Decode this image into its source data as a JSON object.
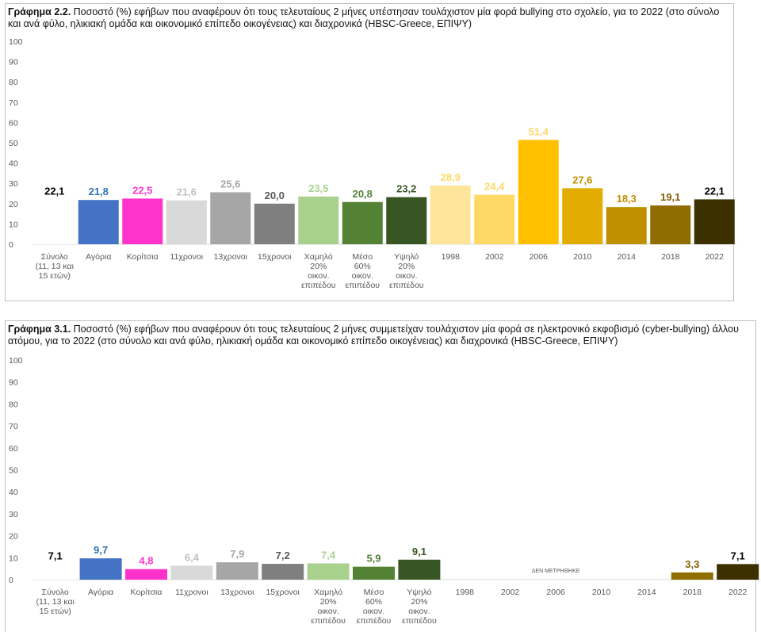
{
  "palette": [
    "#ffffff",
    "#4472c4",
    "#ff33cc",
    "#d9d9d9",
    "#a6a6a6",
    "#7f7f7f",
    "#a9d18e",
    "#548235",
    "#375623",
    "#fee599",
    "#ffd966",
    "#ffc000",
    "#e2ac00",
    "#bf9000",
    "#8f6d00",
    "#3c3000"
  ],
  "label_colors": [
    "#000000",
    "#2e75b6",
    "#ff33cc",
    "#bfbfbf",
    "#a6a6a6",
    "#595959",
    "#a9d18e",
    "#548235",
    "#375623",
    "#ffd966",
    "#ffd966",
    "#ffd966",
    "#bf9000",
    "#bf9000",
    "#7f6000",
    "#000000"
  ],
  "chart_data": [
    {
      "type": "bar",
      "title_bold": "Γράφημα 2.2.",
      "title": "Ποσοστό (%) εφήβων που αναφέρουν ότι τους τελευταίους 2 μήνες υπέστησαν τουλάχιστον μία φορά bullying στο σχολείο, για το 2022 (στο σύνολο και ανά φύλο, ηλικιακή ομάδα και οικονομικό επίπεδο οικογένειας) και διαχρονικά (HBSC-Greece, ΕΠΙΨΥ)",
      "categories": [
        "Σύνολο (11, 13 και 15 ετών)",
        "Αγόρια",
        "Κορίτσια",
        "11χρονοι",
        "13χρονοι",
        "15χρονοι",
        "Χαμηλό 20% οικον. επιπέδου",
        "Μέσο 60% οικον. επιπέδου",
        "Υψηλό 20% οικον. επιπέδου",
        "1998",
        "2002",
        "2006",
        "2010",
        "2014",
        "2018",
        "2022"
      ],
      "values": [
        22.1,
        21.8,
        22.5,
        21.6,
        25.6,
        20.0,
        23.5,
        20.8,
        23.2,
        28.9,
        24.4,
        51.4,
        27.6,
        18.3,
        19.1,
        22.1
      ],
      "labels": [
        "22,1",
        "21,8",
        "22,5",
        "21,6",
        "25,6",
        "20,0",
        "23,5",
        "20,8",
        "23,2",
        "28,9",
        "24,4",
        "51,4",
        "27,6",
        "18,3",
        "19,1",
        "22,1"
      ],
      "ylim": [
        0,
        100
      ],
      "yticks": [
        "0",
        "10",
        "20",
        "30",
        "40",
        "50",
        "60",
        "70",
        "80",
        "90",
        "100"
      ]
    },
    {
      "type": "bar",
      "title_bold": "Γράφημα 3.1.",
      "title": "Ποσοστό (%) εφήβων που αναφέρουν ότι τους τελευταίους 2 μήνες συμμετείχαν τουλάχιστον μία φορά σε ηλεκτρονικό εκφοβισμό (cyber-bullying) άλλου ατόμου, για το 2022 (στο σύνολο και ανά φύλο, ηλικιακή ομάδα και οικονομικό επίπεδο οικογένειας) και διαχρονικά (HBSC-Greece, ΕΠΙΨΥ)",
      "categories": [
        "Σύνολο (11, 13 και 15 ετών)",
        "Αγόρια",
        "Κορίτσια",
        "11χρονοι",
        "13χρονοι",
        "15χρονοι",
        "Χαμηλό 20% οικον. επιπέδου",
        "Μέσο 60% οικον. επιπέδου",
        "Υψηλό 20% οικον. επιπέδου",
        "1998",
        "2002",
        "2006",
        "2010",
        "2014",
        "2018",
        "2022"
      ],
      "values": [
        7.1,
        9.7,
        4.8,
        6.4,
        7.9,
        7.2,
        7.4,
        5.9,
        9.1,
        null,
        null,
        null,
        null,
        null,
        3.3,
        7.1
      ],
      "labels": [
        "7,1",
        "9,7",
        "4,8",
        "6,4",
        "7,9",
        "7,2",
        "7,4",
        "5,9",
        "9,1",
        "",
        "",
        "",
        "",
        "",
        "3,3",
        "7,1"
      ],
      "ylim": [
        0,
        100
      ],
      "yticks": [
        "0",
        "10",
        "20",
        "30",
        "40",
        "50",
        "60",
        "70",
        "80",
        "90",
        "100"
      ],
      "annotation": "ΔΕΝ ΜΕΤΡΗΘΗΚΕ"
    }
  ]
}
